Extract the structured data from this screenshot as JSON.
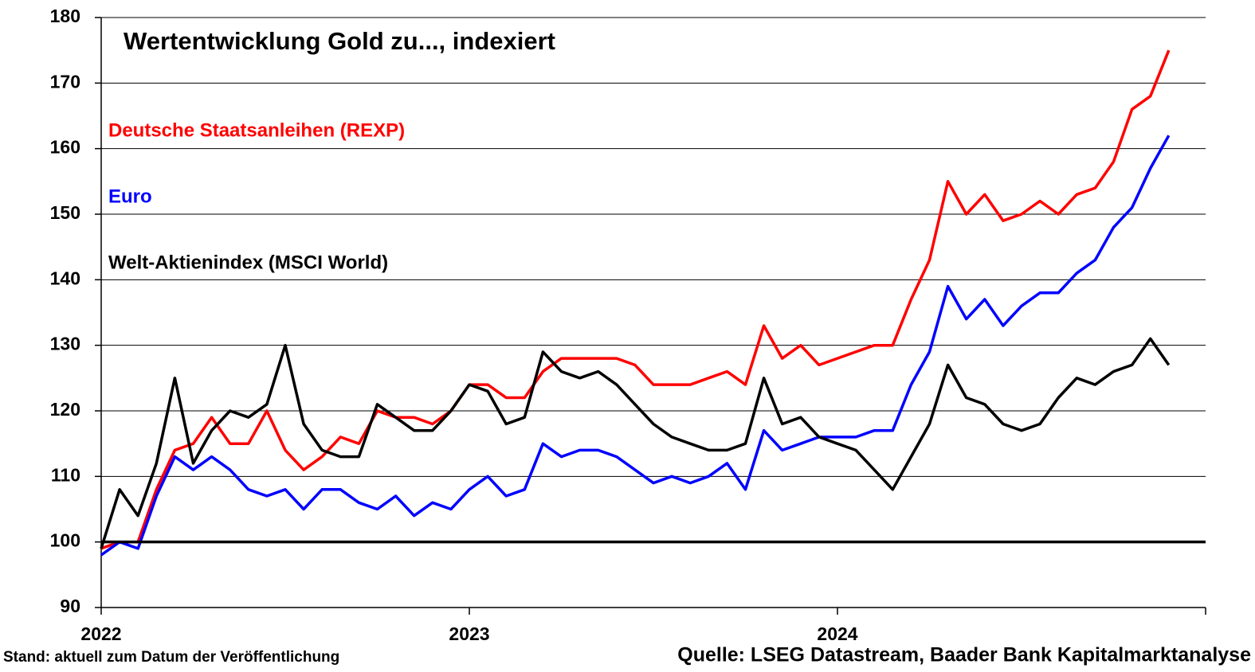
{
  "chart_data": {
    "type": "line",
    "title": "Wertentwicklung Gold zu..., indexiert",
    "footnote_left": "Stand: aktuell zum Datum der Veröffentlichung",
    "footnote_right": "Quelle: LSEG Datastream, Baader Bank Kapitalmarktanalyse",
    "x": [
      2022.0,
      2022.05,
      2022.1,
      2022.15,
      2022.2,
      2022.25,
      2022.3,
      2022.35,
      2022.4,
      2022.45,
      2022.5,
      2022.55,
      2022.6,
      2022.65,
      2022.7,
      2022.75,
      2022.8,
      2022.85,
      2022.9,
      2022.95,
      2023.0,
      2023.05,
      2023.1,
      2023.15,
      2023.2,
      2023.25,
      2023.3,
      2023.35,
      2023.4,
      2023.45,
      2023.5,
      2023.55,
      2023.6,
      2023.65,
      2023.7,
      2023.75,
      2023.8,
      2023.85,
      2023.9,
      2023.95,
      2024.0,
      2024.05,
      2024.1,
      2024.15,
      2024.2,
      2024.25,
      2024.3,
      2024.35,
      2024.4,
      2024.45,
      2024.5,
      2024.55,
      2024.6,
      2024.65,
      2024.7,
      2024.75,
      2024.8,
      2024.85,
      2024.9
    ],
    "series": [
      {
        "name": "Deutsche Staatsanleihen (REXP)",
        "color": "#ff0000",
        "values": [
          99,
          100,
          100,
          108,
          114,
          115,
          119,
          115,
          115,
          120,
          114,
          111,
          113,
          116,
          115,
          120,
          119,
          119,
          118,
          120,
          124,
          124,
          122,
          122,
          126,
          128,
          128,
          128,
          128,
          127,
          124,
          124,
          124,
          125,
          126,
          124,
          133,
          128,
          130,
          127,
          128,
          129,
          130,
          130,
          137,
          143,
          155,
          150,
          153,
          149,
          150,
          152,
          150,
          153,
          154,
          158,
          166,
          168,
          175
        ]
      },
      {
        "name": "Euro",
        "color": "#0000ff",
        "values": [
          98,
          100,
          99,
          107,
          113,
          111,
          113,
          111,
          108,
          107,
          108,
          105,
          108,
          108,
          106,
          105,
          107,
          104,
          106,
          105,
          108,
          110,
          107,
          108,
          115,
          113,
          114,
          114,
          113,
          111,
          109,
          110,
          109,
          110,
          112,
          108,
          117,
          114,
          115,
          116,
          116,
          116,
          117,
          117,
          124,
          129,
          139,
          134,
          137,
          133,
          136,
          138,
          138,
          141,
          143,
          148,
          151,
          157,
          162
        ]
      },
      {
        "name": "Welt-Aktienindex (MSCI World)",
        "color": "#000000",
        "values": [
          99,
          108,
          104,
          112,
          125,
          112,
          117,
          120,
          119,
          121,
          130,
          118,
          114,
          113,
          113,
          121,
          119,
          117,
          117,
          120,
          124,
          123,
          118,
          119,
          129,
          126,
          125,
          126,
          124,
          121,
          118,
          116,
          115,
          114,
          114,
          115,
          125,
          118,
          119,
          116,
          115,
          114,
          111,
          108,
          113,
          118,
          127,
          122,
          121,
          118,
          117,
          118,
          122,
          125,
          124,
          126,
          127,
          131,
          127
        ]
      }
    ],
    "xlim": [
      2022,
      2025
    ],
    "xticks": [
      2022,
      2023,
      2024
    ],
    "ylim": [
      90,
      180
    ],
    "yticks": [
      90,
      100,
      110,
      120,
      130,
      140,
      150,
      160,
      170,
      180
    ],
    "hline": 100,
    "grid": true,
    "legend": "upper left"
  }
}
